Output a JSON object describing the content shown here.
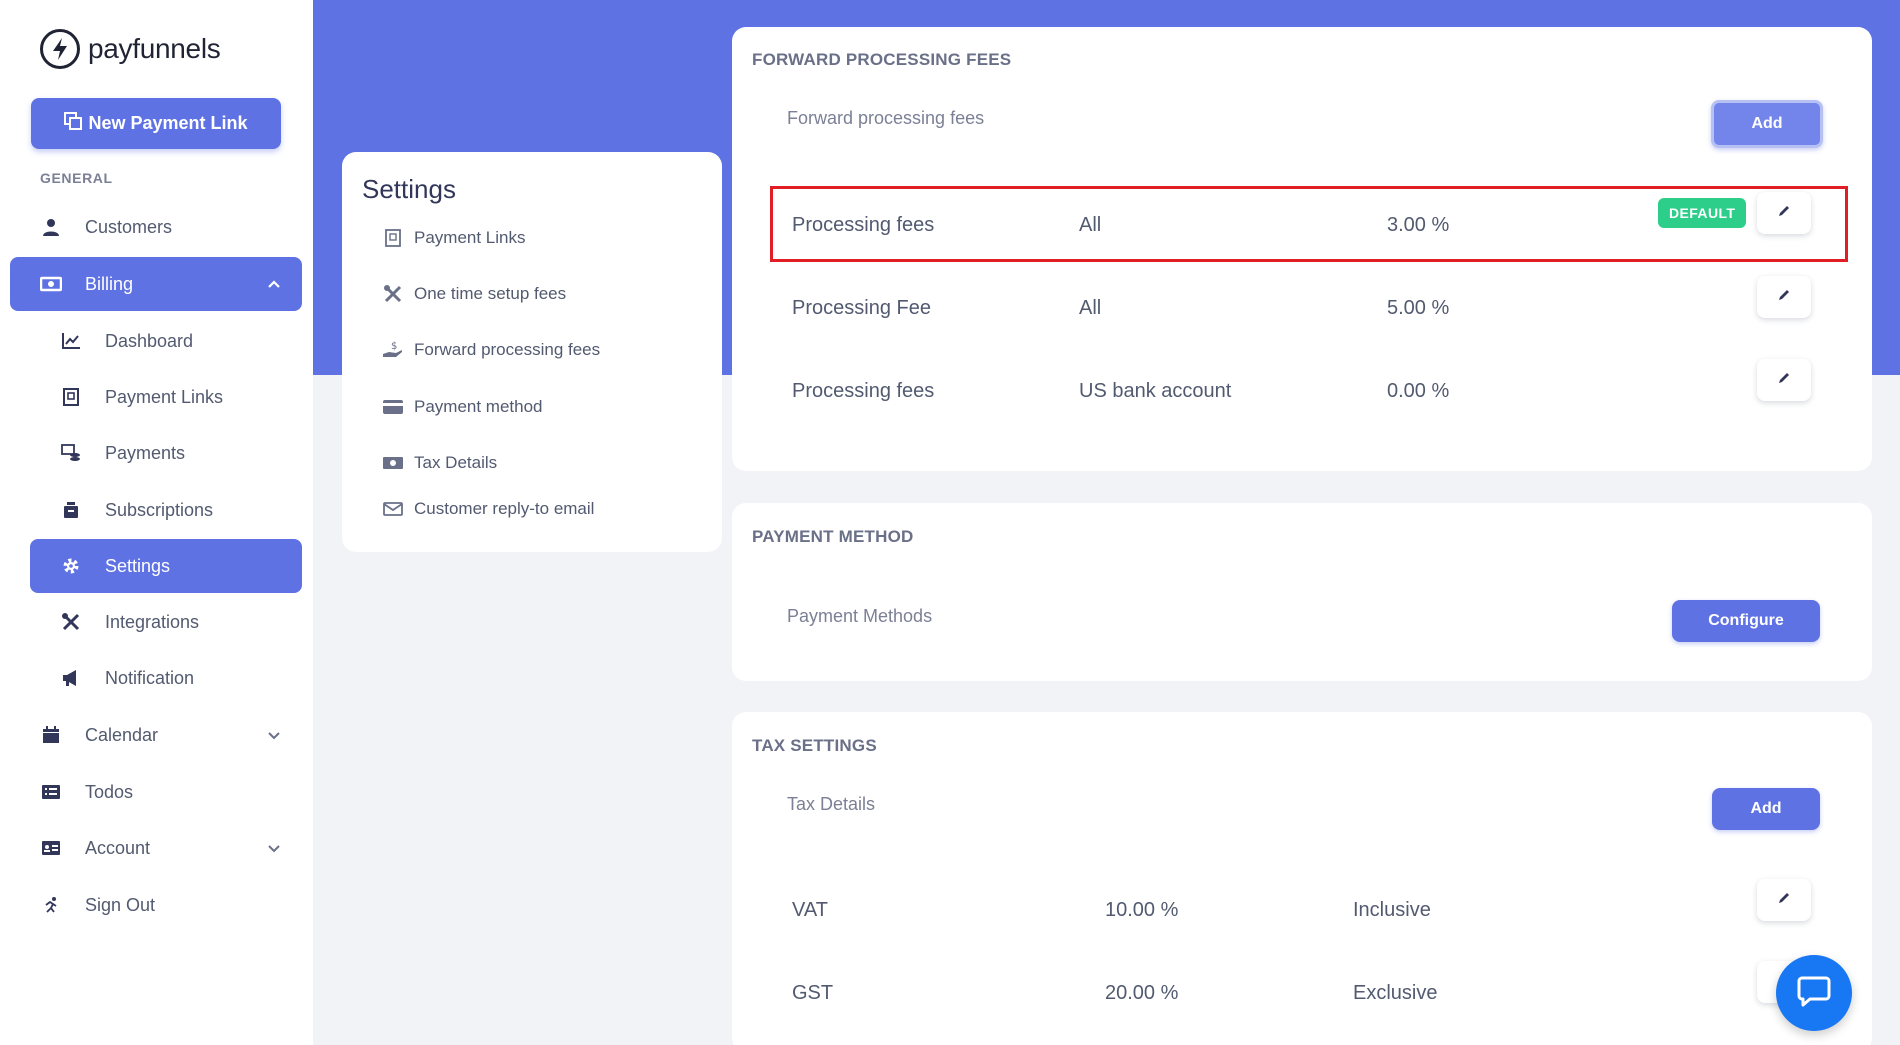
{
  "brand": {
    "name": "payfunnels"
  },
  "sidebar": {
    "new_link_label": "New Payment Link",
    "section_general": "GENERAL",
    "items": {
      "customers": "Customers",
      "billing": "Billing",
      "dashboard": "Dashboard",
      "payment_links": "Payment Links",
      "payments": "Payments",
      "subscriptions": "Subscriptions",
      "settings": "Settings",
      "integrations": "Integrations",
      "notification": "Notification",
      "calendar": "Calendar",
      "todos": "Todos",
      "account": "Account",
      "sign_out": "Sign Out"
    }
  },
  "settings_menu": {
    "title": "Settings",
    "links": {
      "payment_links": "Payment Links",
      "one_time_setup": "One time setup fees",
      "forward_fees": "Forward processing fees",
      "payment_method": "Payment method",
      "tax_details": "Tax Details",
      "reply_email": "Customer reply-to email"
    }
  },
  "forward_fees": {
    "title": "FORWARD PROCESSING FEES",
    "subtitle": "Forward processing fees",
    "add_label": "Add",
    "default_badge": "DEFAULT",
    "rows": [
      {
        "name": "Processing fees",
        "scope": "All",
        "rate": "3.00 %"
      },
      {
        "name": "Processing Fee",
        "scope": "All",
        "rate": "5.00 %"
      },
      {
        "name": "Processing fees",
        "scope": "US bank account",
        "rate": "0.00 %"
      }
    ]
  },
  "payment_method": {
    "title": "PAYMENT METHOD",
    "subtitle": "Payment Methods",
    "configure_label": "Configure"
  },
  "tax_settings": {
    "title": "TAX SETTINGS",
    "subtitle": "Tax Details",
    "add_label": "Add",
    "rows": [
      {
        "name": "VAT",
        "rate": "10.00 %",
        "type": "Inclusive"
      },
      {
        "name": "GST",
        "rate": "20.00 %",
        "type": "Exclusive"
      }
    ]
  },
  "colors": {
    "accent": "#5f72e4",
    "success": "#2dce89",
    "highlight": "#e01e24",
    "chat": "#1877f2"
  }
}
